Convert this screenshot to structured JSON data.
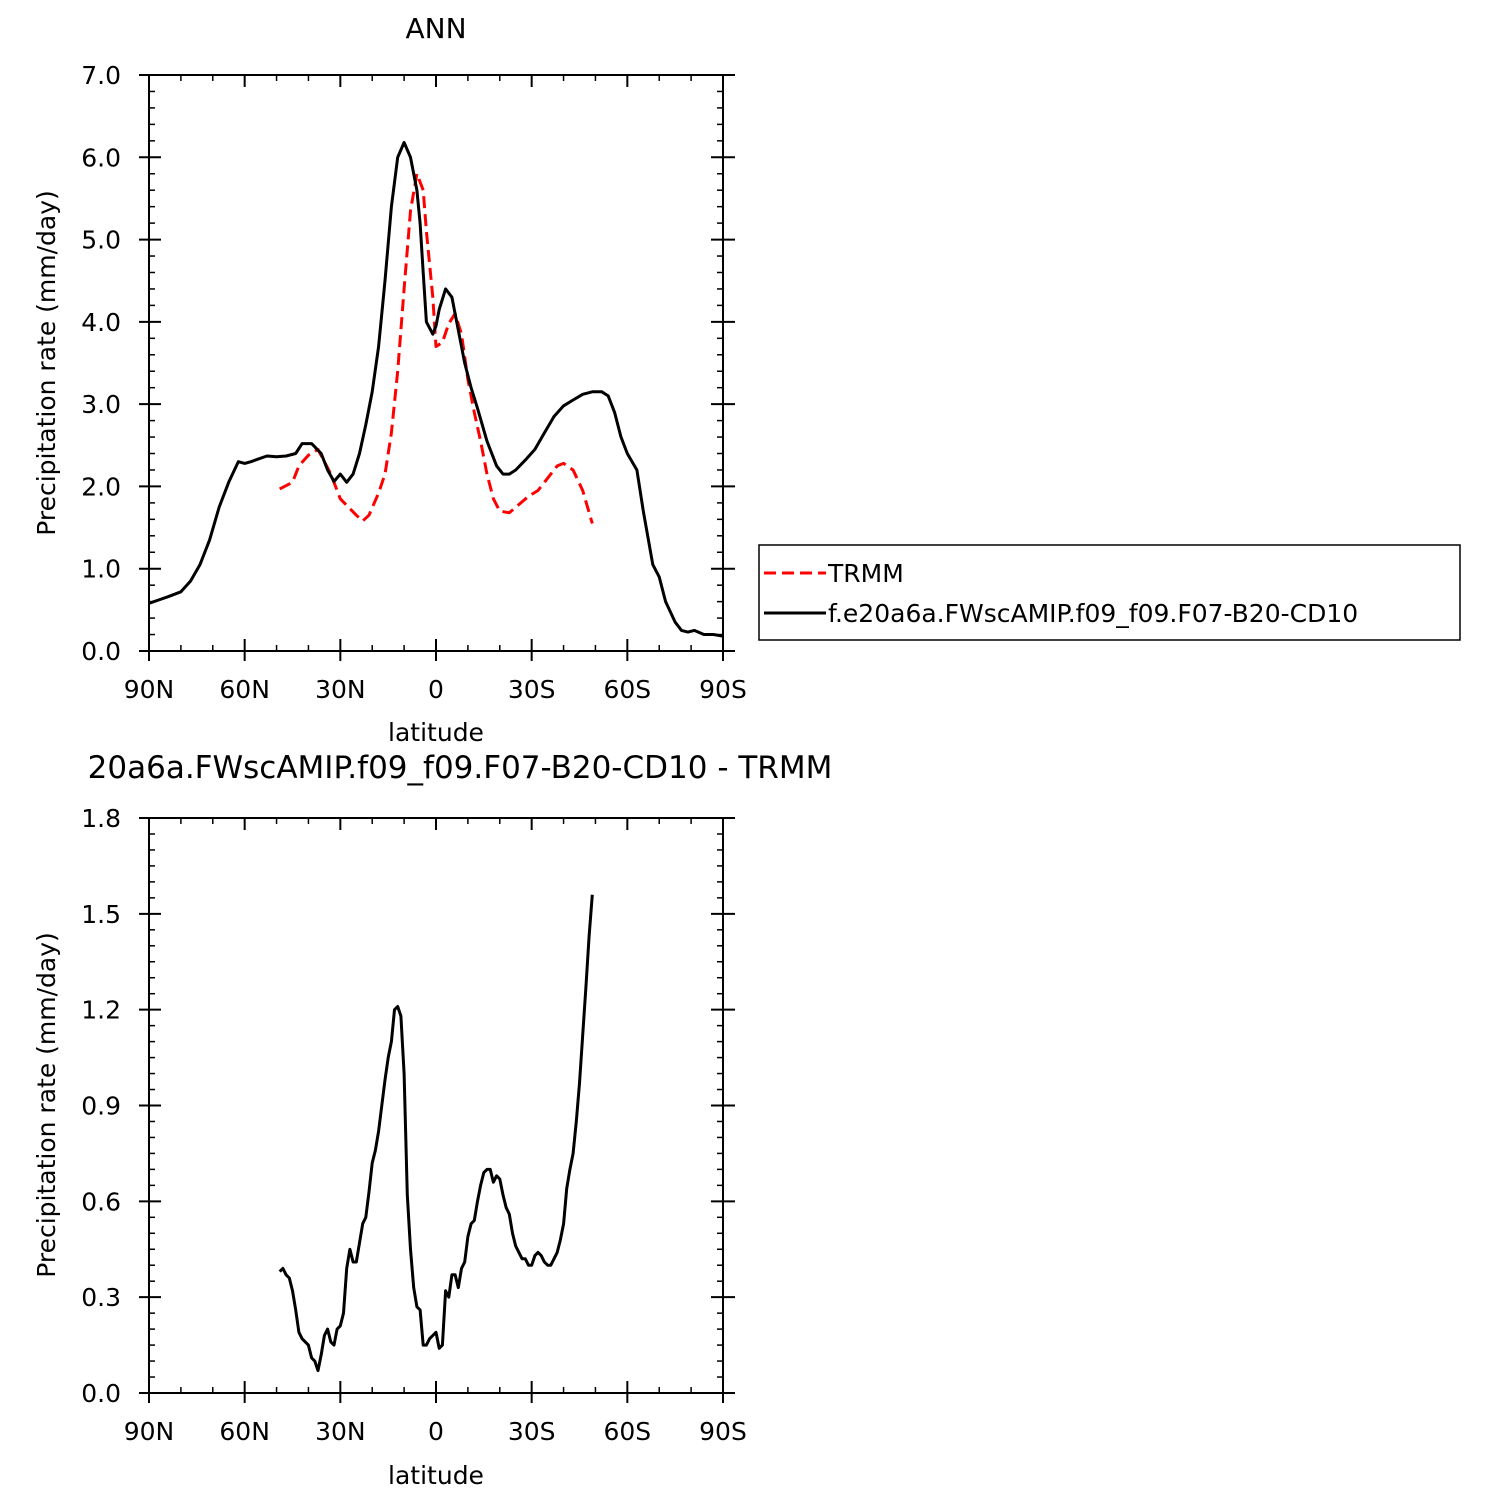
{
  "chart_data": [
    {
      "type": "line",
      "title": "ANN",
      "xlabel": "latitude",
      "ylabel": "Precipitation rate (mm/day)",
      "xlim": [
        90,
        -90
      ],
      "ylim": [
        0.0,
        7.0
      ],
      "xticks": [
        90,
        60,
        30,
        0,
        -30,
        -60,
        -90
      ],
      "xtick_labels": [
        "90N",
        "60N",
        "30N",
        "0",
        "30S",
        "60S",
        "90S"
      ],
      "yticks": [
        0,
        1,
        2,
        3,
        4,
        5,
        6,
        7
      ],
      "ytick_labels": [
        "0.0",
        "1.0",
        "2.0",
        "3.0",
        "4.0",
        "5.0",
        "6.0",
        "7.0"
      ],
      "legend_placement": "right, outside plot",
      "series": [
        {
          "name": "TRMM",
          "color": "#ff0000",
          "dash": "dashed",
          "x": [
            49,
            45,
            43,
            40,
            37,
            33,
            30,
            27,
            25,
            23,
            21,
            18,
            16,
            14,
            12,
            10,
            8,
            6,
            4,
            3,
            1,
            0,
            -2,
            -4,
            -6,
            -8,
            -10,
            -12,
            -14,
            -16,
            -18,
            -20,
            -23,
            -26,
            -29,
            -32,
            -35,
            -38,
            -40,
            -43,
            -46,
            -49
          ],
          "y": [
            1.97,
            2.05,
            2.25,
            2.38,
            2.45,
            2.15,
            1.85,
            1.73,
            1.65,
            1.58,
            1.65,
            1.92,
            2.15,
            2.65,
            3.4,
            4.4,
            5.35,
            5.8,
            5.6,
            5.1,
            4.3,
            3.7,
            3.75,
            3.98,
            4.1,
            3.85,
            3.3,
            2.9,
            2.55,
            2.15,
            1.85,
            1.7,
            1.68,
            1.78,
            1.88,
            1.95,
            2.1,
            2.25,
            2.28,
            2.2,
            1.95,
            1.55
          ]
        },
        {
          "name": "f.e20a6a.FWscAMIP.f09_f09.F07-B20-CD10",
          "color": "#000000",
          "dash": "solid",
          "x": [
            90,
            87,
            84,
            80,
            77,
            74,
            71,
            68,
            65,
            62,
            60,
            58,
            56,
            53,
            50,
            47,
            44,
            42,
            39,
            36,
            34,
            32,
            30,
            28,
            26,
            24,
            22,
            20,
            18,
            16,
            14,
            12,
            10,
            8,
            6,
            5,
            4,
            3,
            1,
            0,
            -1,
            -3,
            -5,
            -7,
            -9,
            -11,
            -13,
            -16,
            -19,
            -21,
            -23,
            -25,
            -28,
            -31,
            -34,
            -37,
            -40,
            -43,
            -46,
            -49,
            -52,
            -54,
            -56,
            -58,
            -60,
            -63,
            -65,
            -68,
            -70,
            -72,
            -75,
            -77,
            -79,
            -81,
            -84,
            -87,
            -90
          ],
          "y": [
            0.58,
            0.62,
            0.66,
            0.72,
            0.85,
            1.05,
            1.35,
            1.75,
            2.05,
            2.3,
            2.28,
            2.3,
            2.33,
            2.37,
            2.36,
            2.37,
            2.4,
            2.52,
            2.52,
            2.4,
            2.2,
            2.06,
            2.15,
            2.05,
            2.15,
            2.4,
            2.75,
            3.15,
            3.7,
            4.5,
            5.4,
            6.0,
            6.18,
            6.0,
            5.6,
            5.2,
            4.6,
            4.0,
            3.85,
            3.95,
            4.15,
            4.4,
            4.3,
            3.9,
            3.5,
            3.2,
            2.95,
            2.55,
            2.25,
            2.15,
            2.15,
            2.2,
            2.32,
            2.45,
            2.65,
            2.85,
            2.98,
            3.05,
            3.12,
            3.15,
            3.15,
            3.1,
            2.9,
            2.6,
            2.4,
            2.2,
            1.7,
            1.05,
            0.9,
            0.6,
            0.35,
            0.25,
            0.23,
            0.25,
            0.2,
            0.2,
            0.18
          ]
        }
      ]
    },
    {
      "type": "line",
      "title": "20a6a.FWscAMIP.f09_f09.F07-B20-CD10 - TRMM",
      "xlabel": "latitude",
      "ylabel": "Precipitation rate (mm/day)",
      "xlim": [
        90,
        -90
      ],
      "ylim": [
        0.0,
        1.8
      ],
      "xticks": [
        90,
        60,
        30,
        0,
        -30,
        -60,
        -90
      ],
      "xtick_labels": [
        "90N",
        "60N",
        "30N",
        "0",
        "30S",
        "60S",
        "90S"
      ],
      "yticks": [
        0.0,
        0.3,
        0.6,
        0.9,
        1.2,
        1.5,
        1.8
      ],
      "ytick_labels": [
        "0.0",
        "0.3",
        "0.6",
        "0.9",
        "1.2",
        "1.5",
        "1.8"
      ],
      "series": [
        {
          "color": "#000000",
          "dash": "solid",
          "x": [
            49,
            48,
            47,
            46,
            45,
            44,
            43,
            42,
            41,
            40,
            39,
            38,
            37,
            36,
            35,
            34,
            33,
            32,
            31,
            30,
            29,
            28,
            27,
            26,
            25,
            24,
            23,
            22,
            21,
            20,
            19,
            18,
            17,
            16,
            15,
            14,
            13,
            12,
            11,
            10,
            9,
            8,
            7,
            6,
            5,
            4,
            3,
            2,
            1,
            0,
            -1,
            -2,
            -3,
            -4,
            -5,
            -6,
            -7,
            -8,
            -9,
            -10,
            -11,
            -12,
            -13,
            -14,
            -15,
            -16,
            -17,
            -18,
            -19,
            -20,
            -21,
            -22,
            -23,
            -24,
            -25,
            -26,
            -27,
            -28,
            -29,
            -30,
            -31,
            -32,
            -33,
            -34,
            -35,
            -36,
            -37,
            -38,
            -39,
            -40,
            -41,
            -42,
            -43,
            -44,
            -45,
            -46,
            -47,
            -48,
            -49
          ],
          "y": [
            0.38,
            0.39,
            0.37,
            0.36,
            0.32,
            0.26,
            0.19,
            0.17,
            0.16,
            0.15,
            0.11,
            0.1,
            0.07,
            0.12,
            0.18,
            0.2,
            0.16,
            0.15,
            0.2,
            0.21,
            0.25,
            0.39,
            0.45,
            0.41,
            0.41,
            0.47,
            0.53,
            0.55,
            0.63,
            0.72,
            0.76,
            0.82,
            0.9,
            0.98,
            1.05,
            1.1,
            1.2,
            1.21,
            1.18,
            1.0,
            0.62,
            0.45,
            0.33,
            0.27,
            0.26,
            0.15,
            0.15,
            0.17,
            0.18,
            0.19,
            0.14,
            0.15,
            0.32,
            0.3,
            0.37,
            0.37,
            0.33,
            0.39,
            0.41,
            0.49,
            0.53,
            0.54,
            0.6,
            0.65,
            0.69,
            0.7,
            0.7,
            0.66,
            0.68,
            0.67,
            0.62,
            0.58,
            0.56,
            0.5,
            0.46,
            0.44,
            0.42,
            0.42,
            0.4,
            0.4,
            0.43,
            0.44,
            0.43,
            0.41,
            0.4,
            0.4,
            0.42,
            0.44,
            0.48,
            0.53,
            0.64,
            0.7,
            0.75,
            0.85,
            0.97,
            1.12,
            1.27,
            1.43,
            1.56
          ]
        }
      ]
    }
  ],
  "legend": {
    "items": [
      {
        "label": "TRMM",
        "color": "#ff0000",
        "dash": "dashed"
      },
      {
        "label": "f.e20a6a.FWscAMIP.f09_f09.F07-B20-CD10",
        "color": "#000000",
        "dash": "solid"
      }
    ]
  }
}
